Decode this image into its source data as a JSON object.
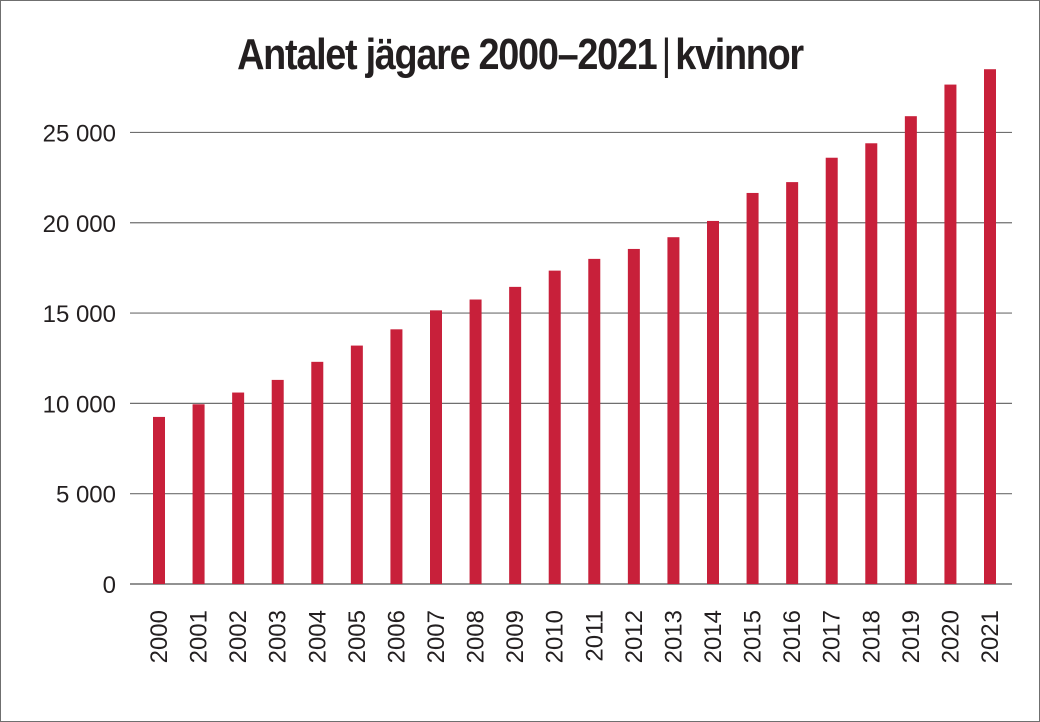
{
  "chart_data": {
    "type": "bar",
    "title": "Antalet jägare 2000–2021",
    "title_suffix": "kvinnor",
    "title_separator": "|",
    "xlabel": "",
    "ylabel": "",
    "categories": [
      "2000",
      "2001",
      "2002",
      "2003",
      "2004",
      "2005",
      "2006",
      "2007",
      "2008",
      "2009",
      "2010",
      "2011",
      "2012",
      "2013",
      "2014",
      "2015",
      "2016",
      "2017",
      "2018",
      "2019",
      "2020",
      "2021"
    ],
    "values": [
      9250,
      9950,
      10600,
      11300,
      12300,
      13200,
      14100,
      15150,
      15750,
      16450,
      17350,
      18000,
      18550,
      19200,
      20100,
      21650,
      22250,
      23600,
      24400,
      25900,
      27650,
      28500
    ],
    "ylim": [
      0,
      28900
    ],
    "yticks": [
      0,
      5000,
      10000,
      15000,
      20000,
      25000
    ],
    "ytick_labels": [
      "0",
      "5 000",
      "10 000",
      "15 000",
      "20 000",
      "25 000"
    ],
    "grid": true,
    "bar_color": "#c8203a",
    "grid_color": "#6f6f6f"
  }
}
